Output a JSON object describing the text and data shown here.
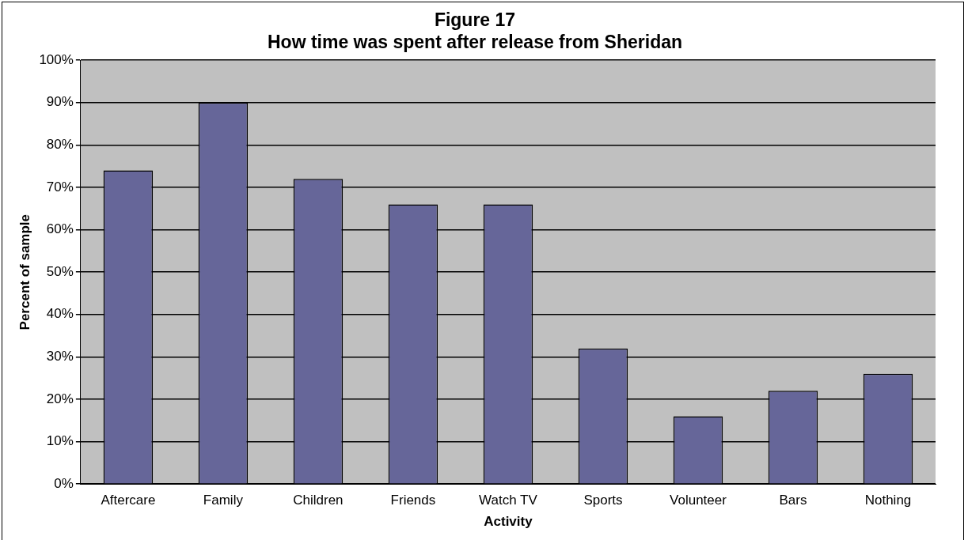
{
  "chart_data": {
    "type": "bar",
    "title": [
      "Figure 17",
      "How time was spent after release from Sheridan"
    ],
    "xlabel": "Activity",
    "ylabel": "Percent of sample",
    "categories": [
      "Aftercare",
      "Family",
      "Children",
      "Friends",
      "Watch TV",
      "Sports",
      "Volunteer",
      "Bars",
      "Nothing"
    ],
    "values": [
      74,
      90,
      72,
      66,
      66,
      32,
      16,
      22,
      26
    ],
    "color": "#666699",
    "ylim": [
      0,
      100
    ],
    "yticks": [
      {
        "value": 0,
        "label": "0%"
      },
      {
        "value": 10,
        "label": "10%"
      },
      {
        "value": 20,
        "label": "20%"
      },
      {
        "value": 30,
        "label": "30%"
      },
      {
        "value": 40,
        "label": "40%"
      },
      {
        "value": 50,
        "label": "50%"
      },
      {
        "value": 60,
        "label": "60%"
      },
      {
        "value": 70,
        "label": "70%"
      },
      {
        "value": 80,
        "label": "80%"
      },
      {
        "value": 90,
        "label": "90%"
      },
      {
        "value": 100,
        "label": "100%"
      }
    ],
    "grid": "y",
    "legend": false
  }
}
